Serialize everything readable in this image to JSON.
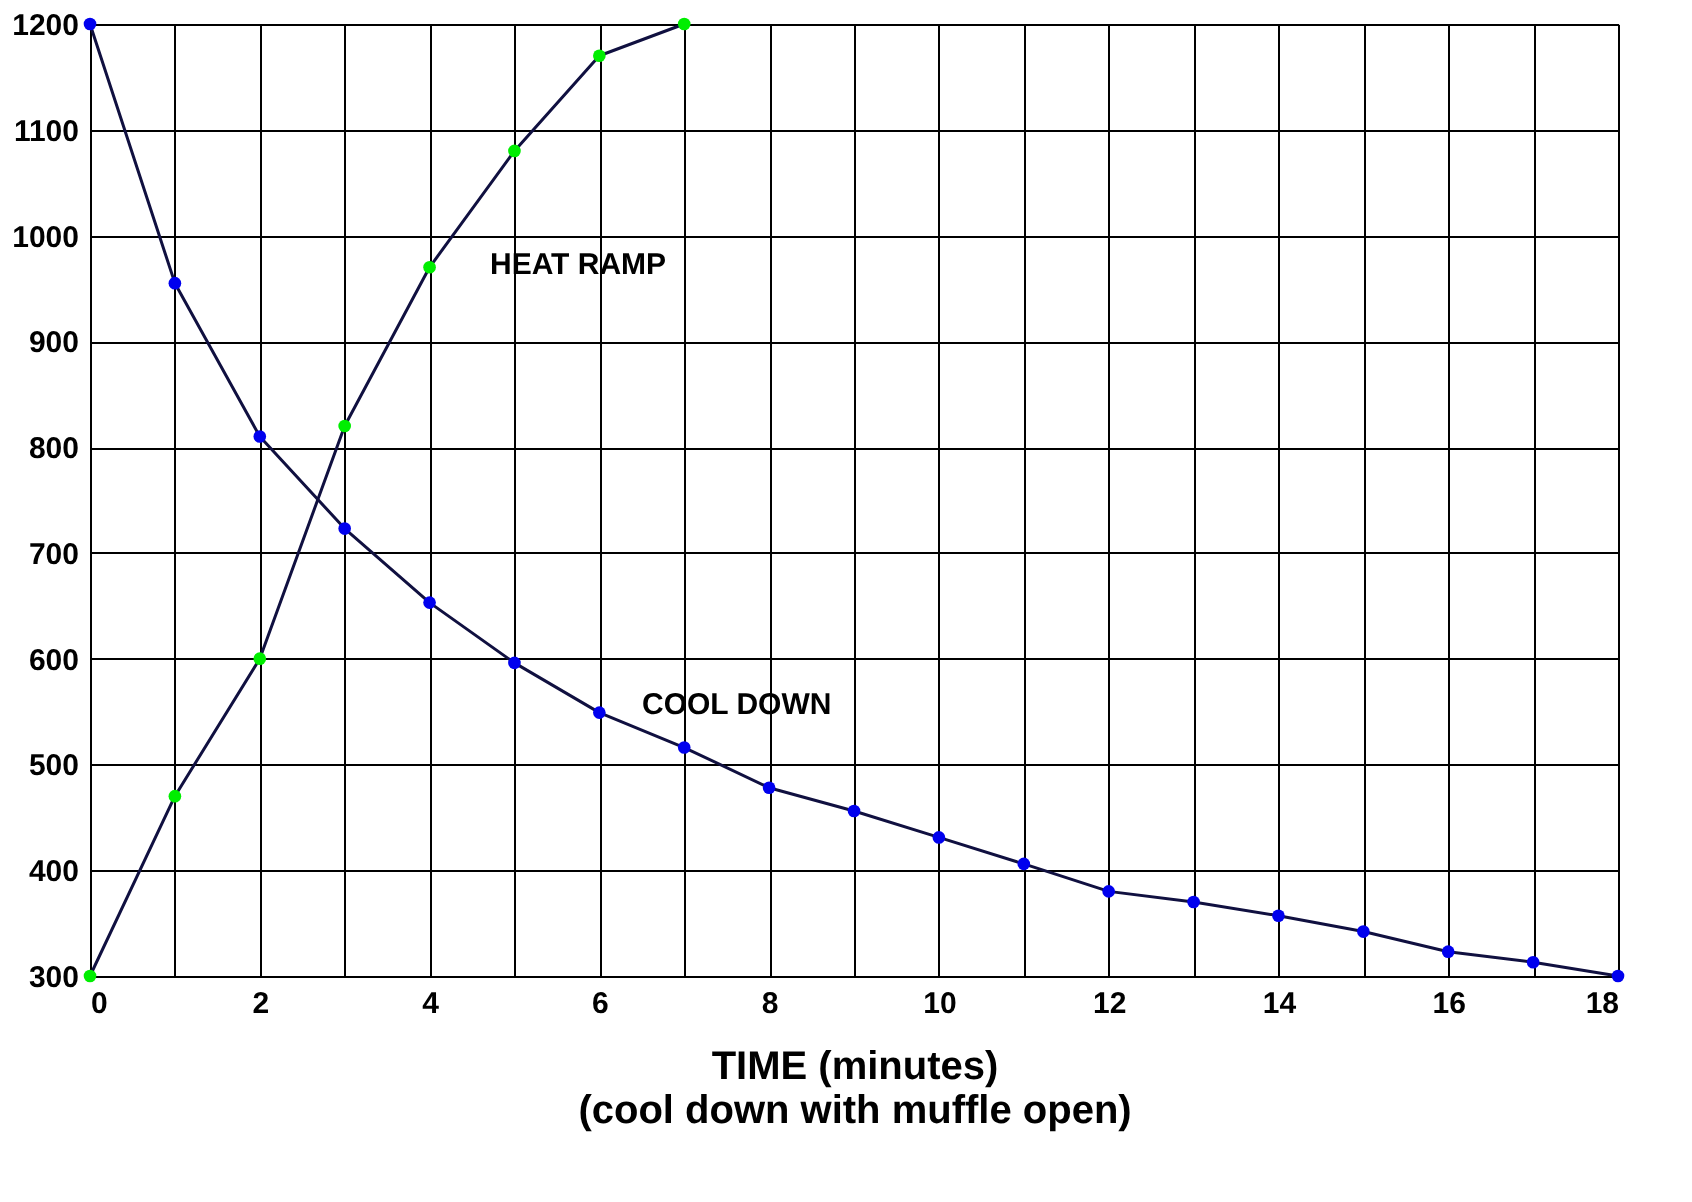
{
  "chart_data": {
    "type": "line",
    "xlabel": "TIME (minutes)\n(cool down with muffle open)",
    "xlim": [
      0,
      18
    ],
    "xticks": [
      0,
      {
        "value": 1,
        "label": null
      },
      2,
      {
        "value": 3,
        "label": null
      },
      4,
      {
        "value": 5,
        "label": null
      },
      6,
      {
        "value": 7,
        "label": null
      },
      8,
      {
        "value": 9,
        "label": null
      },
      10,
      {
        "value": 11,
        "label": null
      },
      12,
      {
        "value": 13,
        "label": null
      },
      14,
      {
        "value": 15,
        "label": null
      },
      16,
      {
        "value": 17,
        "label": null
      },
      18
    ],
    "ylim": [
      300,
      1200
    ],
    "yticks": [
      300,
      400,
      500,
      600,
      700,
      800,
      900,
      1000,
      1100,
      1200
    ],
    "grid": true,
    "legend": false,
    "marker": "circle",
    "line_style": "solid",
    "series": [
      {
        "color": "#00ee00",
        "x": [
          0,
          1,
          2,
          3,
          4,
          5,
          6,
          7
        ],
        "values": [
          300,
          470,
          600,
          820,
          970,
          1080,
          1170,
          1200
        ]
      },
      {
        "color": "#0000ee",
        "x": [
          0,
          1,
          2,
          3,
          4,
          5,
          6,
          7,
          8,
          9,
          10,
          11,
          12,
          13,
          14,
          15,
          16,
          17,
          18
        ],
        "values": [
          1200,
          955,
          810,
          723,
          653,
          596,
          549,
          516,
          478,
          456,
          431,
          406,
          380,
          370,
          357,
          342,
          323,
          313,
          300
        ]
      }
    ],
    "annotations": [
      "HEAT RAMP",
      "COOL DOWN"
    ]
  }
}
